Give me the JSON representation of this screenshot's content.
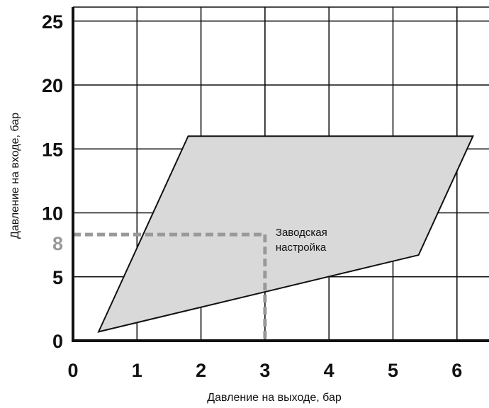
{
  "chart_data": {
    "type": "area",
    "xlabel": "Давление на выходе, бар",
    "ylabel": "Давление на входе, бар",
    "xlim": [
      0,
      6.5
    ],
    "ylim": [
      0,
      26
    ],
    "x_ticks": [
      "0",
      "1",
      "2",
      "3",
      "4",
      "5",
      "6"
    ],
    "y_ticks": [
      "0",
      "5",
      "10",
      "15",
      "20",
      "25"
    ],
    "extra_y_tick": "8",
    "grid": true,
    "region": {
      "fill": "#d9d9d9",
      "points": [
        {
          "x": 0.4,
          "y": 0.7
        },
        {
          "x": 1.8,
          "y": 16
        },
        {
          "x": 6.25,
          "y": 16
        },
        {
          "x": 5.4,
          "y": 6.7
        }
      ]
    },
    "factory_setting": {
      "x": 3,
      "y": 8.3,
      "label_line1": "Заводская",
      "label_line2": "настройка",
      "color": "#999999"
    }
  }
}
